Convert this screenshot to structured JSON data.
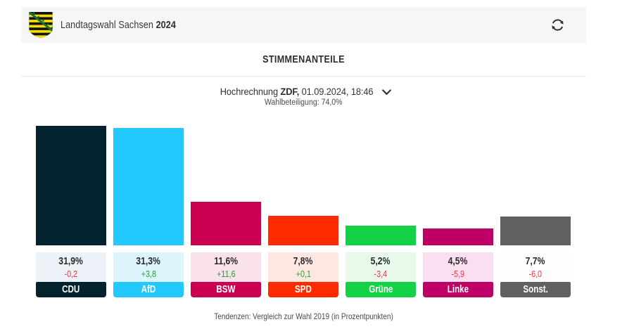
{
  "header": {
    "title_regular": "Landtagswahl Sachsen",
    "title_bold": "2024",
    "crest_icon": "saxony-coat-of-arms",
    "refresh_icon": "refresh-arrows"
  },
  "section": {
    "title": "STIMMENANTEILE"
  },
  "selector": {
    "label_prefix": "Hochrechnung",
    "label_bold": "ZDF,",
    "label_suffix": "01.09.2024, 18:46",
    "chevron_icon": "chevron-down",
    "subtitle": "Wahlbeteiligung: 74,0%"
  },
  "footer": {
    "note": "Tendenzen: Vergleich zur Wahl 2019 (in Prozentpunkten)"
  },
  "colors": {
    "header_band": "#f5f6f8",
    "trend_positive": "#1ea431",
    "trend_negative": "#f23341"
  },
  "chart_data": {
    "type": "bar",
    "title": "STIMMENANTEILE",
    "categories": [
      "CDU",
      "AfD",
      "BSW",
      "SPD",
      "Grüne",
      "Linke",
      "Sonst."
    ],
    "values": [
      31.9,
      31.3,
      11.6,
      7.8,
      5.2,
      4.5,
      7.7
    ],
    "value_labels": [
      "31,9%",
      "31,3%",
      "11,6%",
      "7,8%",
      "5,2%",
      "4,5%",
      "7,7%"
    ],
    "trend_labels": [
      "-0,2",
      "+3,8",
      "+11,6",
      "+0,1",
      "-3,4",
      "-5,9",
      "-6,0"
    ],
    "trend_directions": [
      "down",
      "up",
      "up",
      "up",
      "down",
      "down",
      "down"
    ],
    "bar_colors": [
      "#02222e",
      "#23c9fc",
      "#cb0051",
      "#fe2b00",
      "#13d246",
      "#be0066",
      "#606062"
    ],
    "box_colors": [
      "#ecf2f8",
      "#def4fc",
      "#fae2ec",
      "#fee7e0",
      "#e8f9ec",
      "#fadff0",
      "#fdfdfd"
    ],
    "ylabel": "",
    "xlabel": "",
    "ylim": [
      0,
      31.9
    ],
    "grid": false,
    "legend": false
  }
}
